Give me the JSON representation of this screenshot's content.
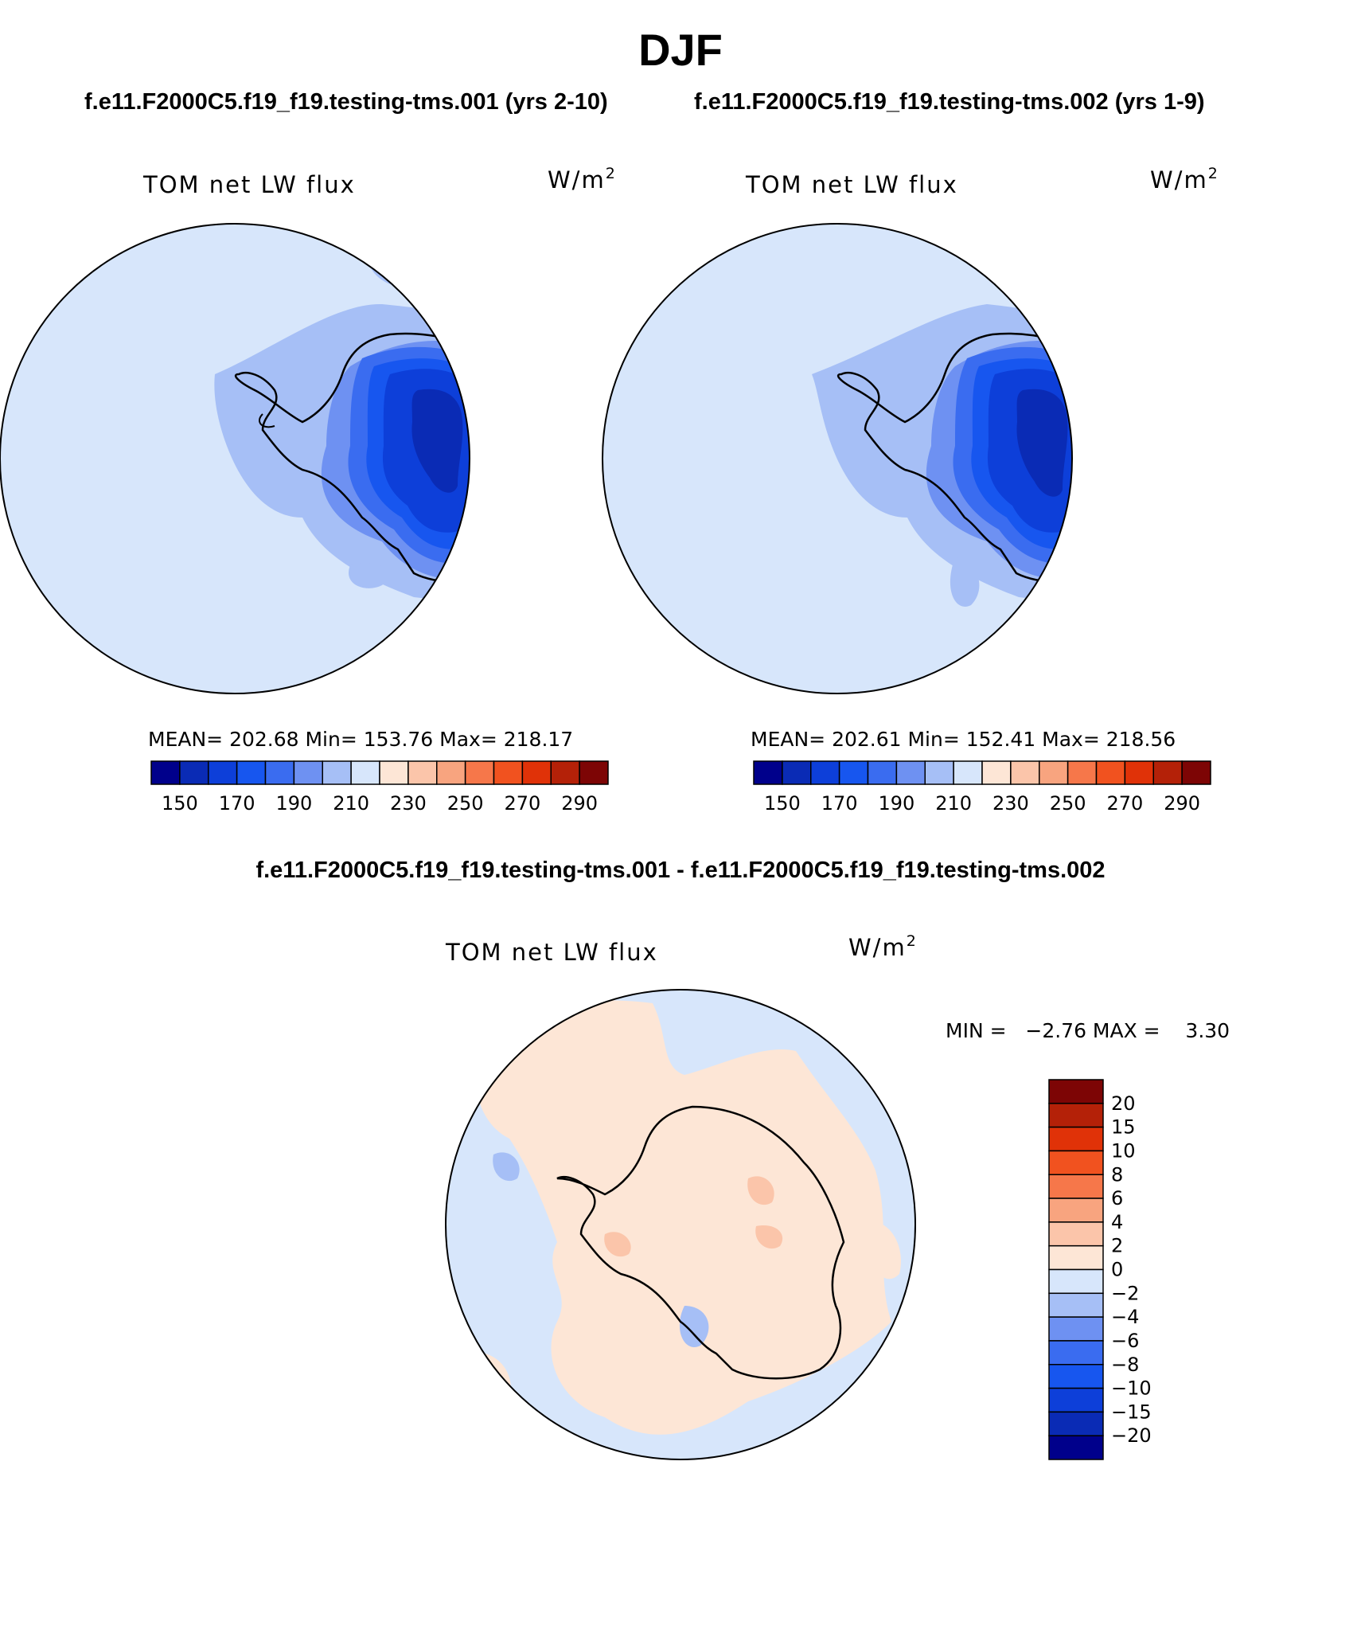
{
  "figure": {
    "title": "DJF",
    "subtitle_left": "f.e11.F2000C5.f19_f19.testing-tms.001 (yrs 2-10)",
    "subtitle_right": "f.e11.F2000C5.f19_f19.testing-tms.002 (yrs 1-9)",
    "subtitle_diff": "f.e11.F2000C5.f19_f19.testing-tms.001 - f.e11.F2000C5.f19_f19.testing-tms.002"
  },
  "colors": {
    "case_levels": [
      "#00008b",
      "#0a2bb5",
      "#0d3fd9",
      "#1756ef",
      "#3a6cf0",
      "#6e91f2",
      "#a6bff6",
      "#d7e6fb",
      "#fde6d6",
      "#fbc5aa",
      "#f8a47f",
      "#f6774a",
      "#f1521f",
      "#e03208",
      "#b42108",
      "#7d0505"
    ],
    "diff_levels": [
      "#00008b",
      "#0a2bb5",
      "#0d3fd9",
      "#1756ef",
      "#3a6cf0",
      "#6e91f2",
      "#a6bff6",
      "#d7e6fb",
      "#fde6d6",
      "#fbc5aa",
      "#f8a47f",
      "#f6774a",
      "#f1521f",
      "#e03208",
      "#b42108",
      "#7d0505"
    ]
  },
  "chart_data": [
    {
      "type": "map",
      "projection": "south-polar-stereographic",
      "panel": "case-001",
      "label_left": "TOM net LW flux",
      "units_text": "W/m",
      "units_sup": "2",
      "stats_text": "MEAN= 202.68   Min= 153.76   Max= 218.17",
      "mean": 202.68,
      "min": 153.76,
      "max": 218.17,
      "colorbar_orientation": "horizontal",
      "colorbar_ticks": [
        "150",
        "170",
        "190",
        "210",
        "230",
        "250",
        "270",
        "290"
      ]
    },
    {
      "type": "map",
      "projection": "south-polar-stereographic",
      "panel": "case-002",
      "label_left": "TOM net LW flux",
      "units_text": "W/m",
      "units_sup": "2",
      "stats_text": "MEAN= 202.61   Min= 152.41   Max= 218.56",
      "mean": 202.61,
      "min": 152.41,
      "max": 218.56,
      "colorbar_orientation": "horizontal",
      "colorbar_ticks": [
        "150",
        "170",
        "190",
        "210",
        "230",
        "250",
        "270",
        "290"
      ]
    },
    {
      "type": "map",
      "projection": "south-polar-stereographic",
      "panel": "difference",
      "label_left": "TOM net LW flux",
      "units_text": "W/m",
      "units_sup": "2",
      "stats_text": "MIN =   −2.76 MAX =    3.30",
      "min": -2.76,
      "max": 3.3,
      "colorbar_orientation": "vertical",
      "colorbar_ticks": [
        "20",
        "15",
        "10",
        "8",
        "6",
        "4",
        "2",
        "0",
        "−2",
        "−4",
        "−6",
        "−8",
        "−10",
        "−15",
        "−20"
      ]
    }
  ]
}
